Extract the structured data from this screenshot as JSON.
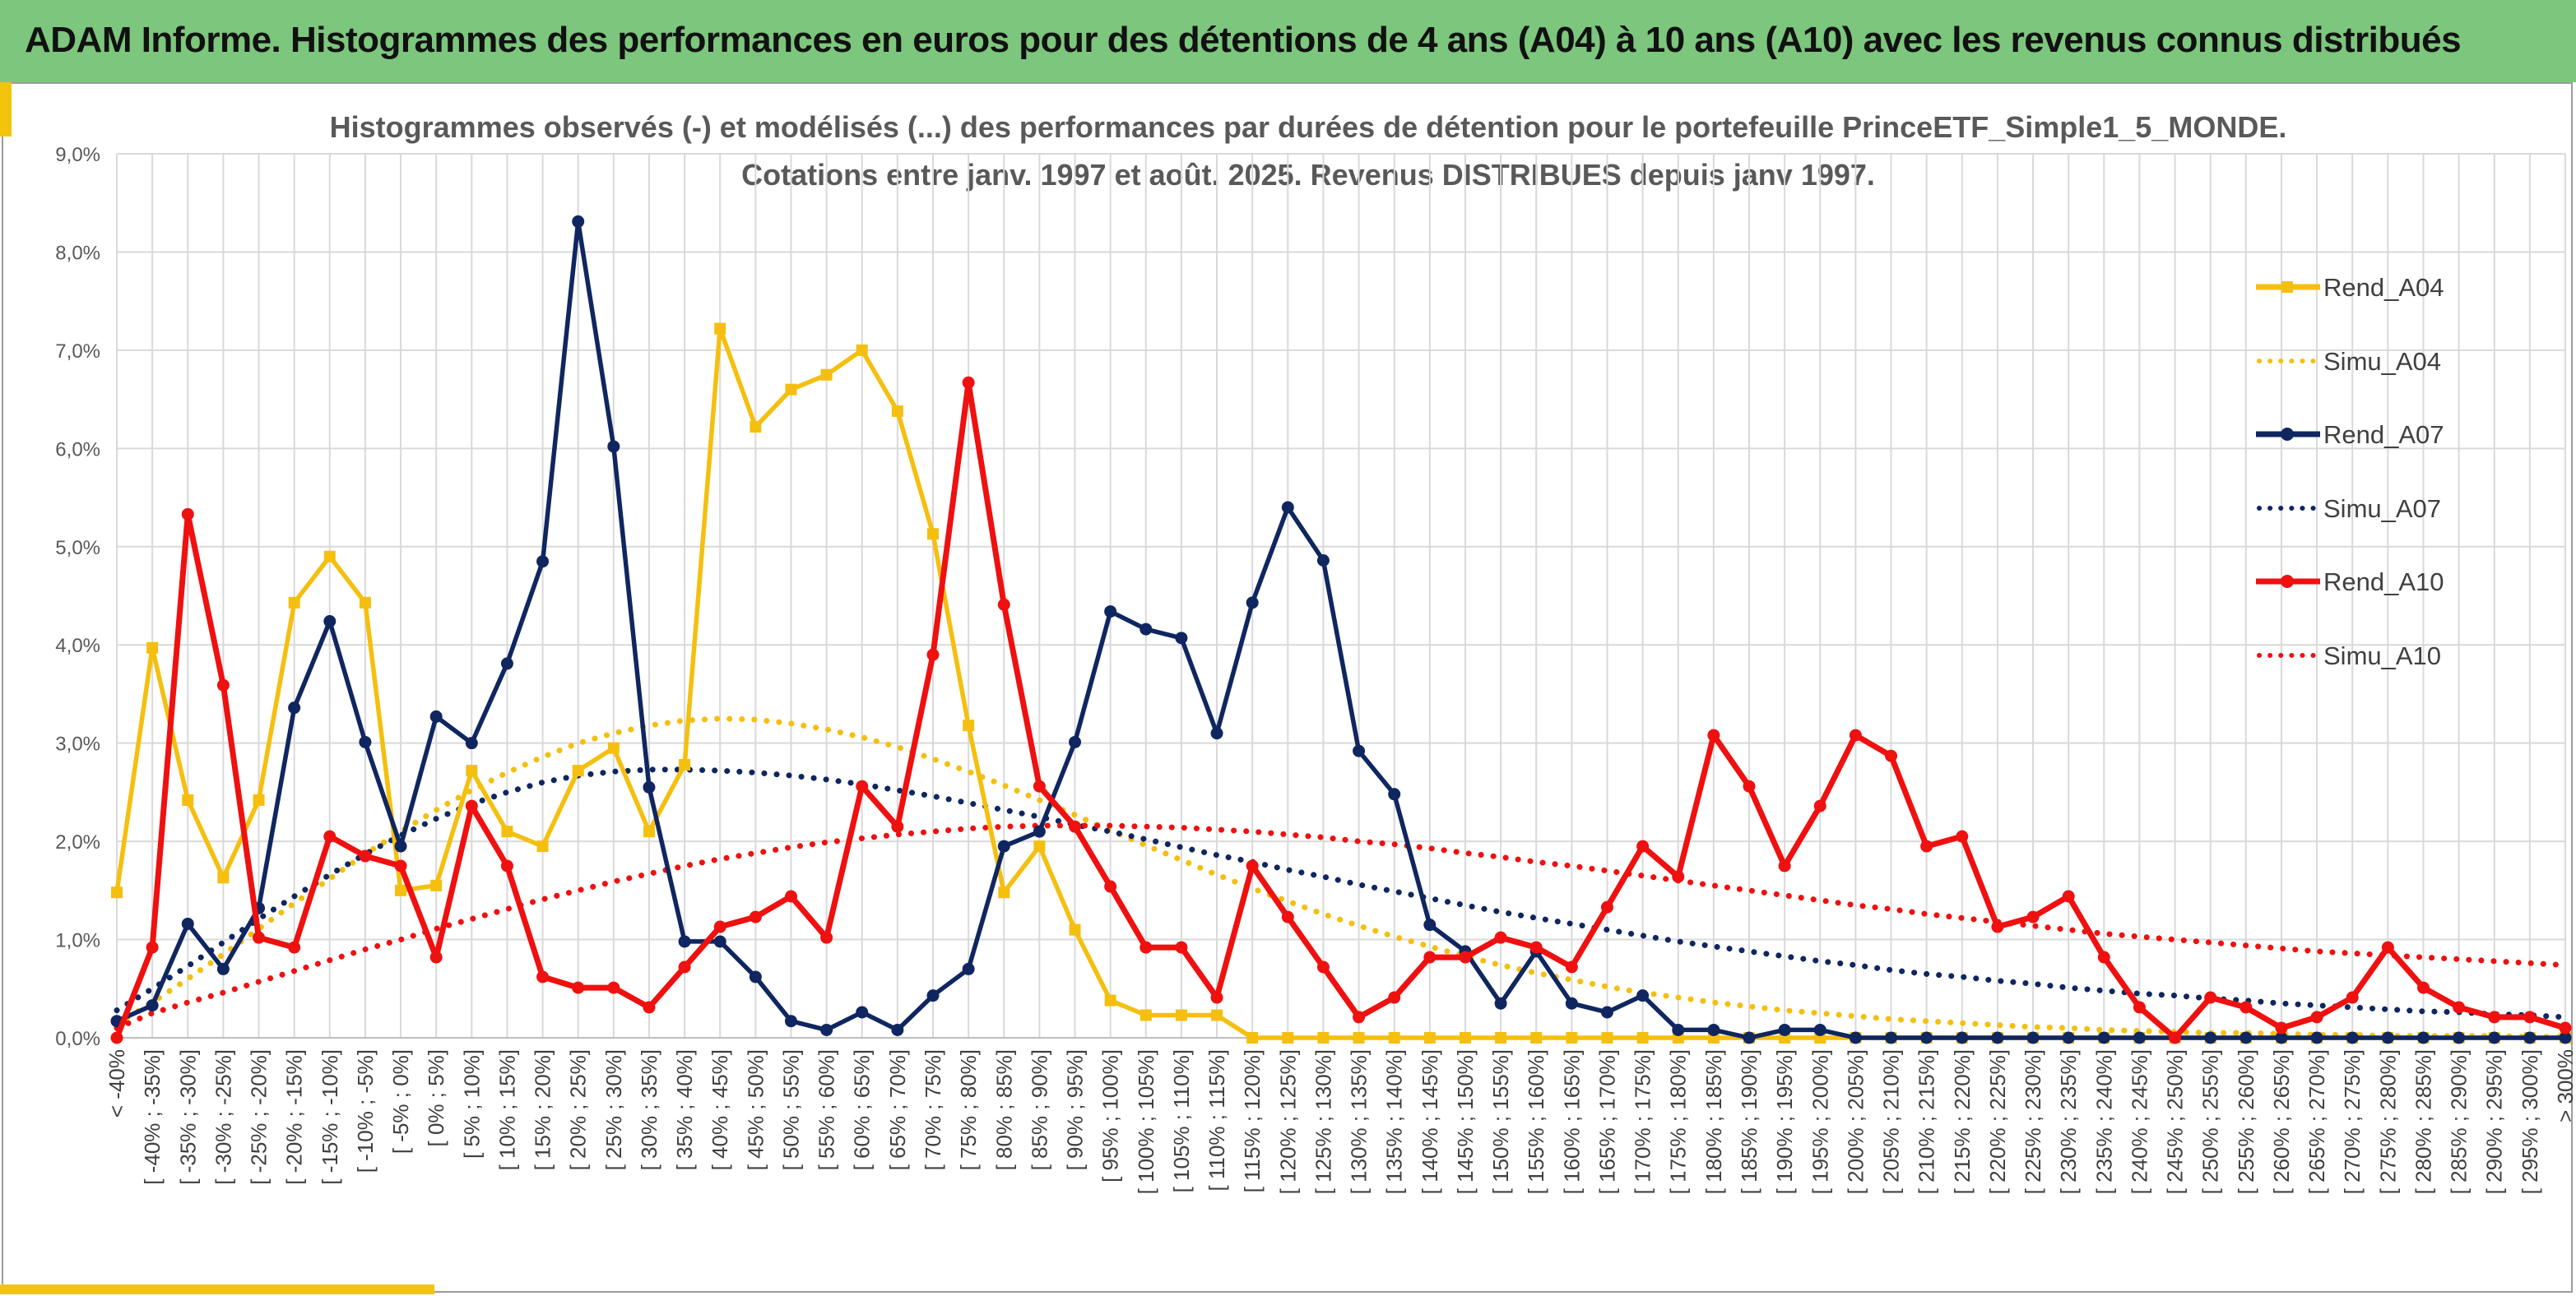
{
  "banner": {
    "title": "ADAM Informe. Histogrammes des performances en euros pour des détentions de 4 ans (A04) à 10 ans (A10) avec les revenus connus distribués"
  },
  "colors": {
    "banner": "#7dc67d",
    "accent": "#f2c40e",
    "A04": "#f5bf0f",
    "A07": "#0f2660",
    "A10": "#ef1010",
    "grid": "#d9d9d9"
  },
  "chart_data": {
    "type": "line",
    "title": "Histogrammes observés (-) et modélisés (...) des performances par durées de détention pour le portefeuille PrinceETF_Simple1_5_MONDE.",
    "subtitle": "Cotations entre janv. 1997 et août. 2025. Revenus DISTRIBUES depuis janv 1997.",
    "xlabel": "",
    "ylabel": "",
    "ylim": [
      0,
      9
    ],
    "y_ticks": [
      "0,0%",
      "1,0%",
      "2,0%",
      "3,0%",
      "4,0%",
      "5,0%",
      "6,0%",
      "7,0%",
      "8,0%",
      "9,0%"
    ],
    "grid": true,
    "legend_position": "right",
    "categories": [
      "< -40%",
      "[ -40% ; -35%]",
      "[ -35% ; -30%]",
      "[ -30% ; -25%]",
      "[ -25% ; -20%]",
      "[ -20% ; -15%]",
      "[ -15% ; -10%]",
      "[ -10% ; -5%]",
      "[ -5% ; 0%]",
      "[ 0% ; 5%]",
      "[ 5% ; 10%]",
      "[ 10% ; 15%]",
      "[ 15% ; 20%]",
      "[ 20% ; 25%]",
      "[ 25% ; 30%]",
      "[ 30% ; 35%]",
      "[ 35% ; 40%]",
      "[ 40% ; 45%]",
      "[ 45% ; 50%]",
      "[ 50% ; 55%]",
      "[ 55% ; 60%]",
      "[ 60% ; 65%]",
      "[ 65% ; 70%]",
      "[ 70% ; 75%]",
      "[ 75% ; 80%]",
      "[ 80% ; 85%]",
      "[ 85% ; 90%]",
      "[ 90% ; 95%]",
      "[ 95% ; 100%]",
      "[ 100% ; 105%]",
      "[ 105% ; 110%]",
      "[ 110% ; 115%]",
      "[ 115% ; 120%]",
      "[ 120% ; 125%]",
      "[ 125% ; 130%]",
      "[ 130% ; 135%]",
      "[ 135% ; 140%]",
      "[ 140% ; 145%]",
      "[ 145% ; 150%]",
      "[ 150% ; 155%]",
      "[ 155% ; 160%]",
      "[ 160% ; 165%]",
      "[ 165% ; 170%]",
      "[ 170% ; 175%]",
      "[ 175% ; 180%]",
      "[ 180% ; 185%]",
      "[ 185% ; 190%]",
      "[ 190% ; 195%]",
      "[ 195% ; 200%]",
      "[ 200% ; 205%]",
      "[ 205% ; 210%]",
      "[ 210% ; 215%]",
      "[ 215% ; 220%]",
      "[ 220% ; 225%]",
      "[ 225% ; 230%]",
      "[ 230% ; 235%]",
      "[ 235% ; 240%]",
      "[ 240% ; 245%]",
      "[ 245% ; 250%]",
      "[ 250% ; 255%]",
      "[ 255% ; 260%]",
      "[ 260% ; 265%]",
      "[ 265% ; 270%]",
      "[ 270% ; 275%]",
      "[ 275% ; 280%]",
      "[ 280% ; 285%]",
      "[ 285% ; 290%]",
      "[ 290% ; 295%]",
      "[ 295% ; 300%]",
      "> 300%"
    ],
    "series": [
      {
        "name": "Rend_A04",
        "style": "solid",
        "marker": "square",
        "color": "#f5bf0f",
        "values": [
          1.48,
          3.97,
          2.42,
          1.63,
          2.42,
          4.43,
          4.9,
          4.43,
          1.5,
          1.55,
          2.72,
          2.1,
          1.95,
          2.72,
          2.95,
          2.1,
          2.78,
          7.22,
          6.22,
          6.6,
          6.75,
          7.0,
          6.38,
          5.13,
          3.18,
          1.48,
          1.95,
          1.1,
          0.38,
          0.23,
          0.23,
          0.23,
          0.0,
          0.0,
          0.0,
          0.0,
          0.0,
          0.0,
          0.0,
          0.0,
          0.0,
          0.0,
          0.0,
          0.0,
          0.0,
          0.0,
          0.0,
          0.0,
          0.0,
          0.0,
          0.0,
          0.0,
          0.0,
          0.0,
          0.0,
          0.0,
          0.0,
          0.0,
          0.0,
          0.0,
          0.0,
          0.0,
          0.0,
          0.0,
          0.0,
          0.0,
          0.0,
          0.0,
          0.0,
          0.0
        ]
      },
      {
        "name": "Simu_A04",
        "style": "dotted",
        "color": "#f5bf0f",
        "values": [
          0.14,
          0.36,
          0.6,
          0.85,
          1.11,
          1.37,
          1.62,
          1.87,
          2.1,
          2.32,
          2.52,
          2.7,
          2.86,
          3.0,
          3.1,
          3.18,
          3.23,
          3.25,
          3.24,
          3.2,
          3.14,
          3.06,
          2.96,
          2.84,
          2.71,
          2.57,
          2.42,
          2.27,
          2.11,
          1.96,
          1.81,
          1.66,
          1.52,
          1.39,
          1.26,
          1.14,
          1.03,
          0.93,
          0.83,
          0.74,
          0.66,
          0.59,
          0.52,
          0.46,
          0.41,
          0.36,
          0.32,
          0.28,
          0.25,
          0.22,
          0.19,
          0.17,
          0.15,
          0.13,
          0.11,
          0.1,
          0.08,
          0.07,
          0.06,
          0.05,
          0.05,
          0.04,
          0.03,
          0.03,
          0.02,
          0.02,
          0.02,
          0.02,
          0.01,
          0.01
        ]
      },
      {
        "name": "Rend_A07",
        "style": "solid",
        "marker": "circle",
        "color": "#0f2660",
        "values": [
          0.17,
          0.33,
          1.16,
          0.7,
          1.32,
          3.36,
          4.24,
          3.01,
          1.95,
          3.27,
          3.0,
          3.81,
          4.85,
          8.31,
          6.02,
          2.55,
          0.98,
          0.98,
          0.62,
          0.17,
          0.08,
          0.26,
          0.08,
          0.43,
          0.7,
          1.95,
          2.1,
          3.01,
          4.34,
          4.16,
          4.07,
          3.1,
          4.43,
          5.4,
          4.86,
          2.92,
          2.48,
          1.15,
          0.88,
          0.35,
          0.88,
          0.35,
          0.26,
          0.43,
          0.08,
          0.08,
          0.0,
          0.08,
          0.08,
          0.0,
          0.0,
          0.0,
          0.0,
          0.0,
          0.0,
          0.0,
          0.0,
          0.0,
          0.0,
          0.0,
          0.0,
          0.0,
          0.0,
          0.0,
          0.0,
          0.0,
          0.0,
          0.0,
          0.0,
          0.0
        ]
      },
      {
        "name": "Simu_A07",
        "style": "dotted",
        "color": "#0f2660",
        "values": [
          0.28,
          0.5,
          0.73,
          0.97,
          1.21,
          1.44,
          1.66,
          1.87,
          2.06,
          2.23,
          2.38,
          2.5,
          2.6,
          2.67,
          2.71,
          2.73,
          2.73,
          2.72,
          2.7,
          2.67,
          2.63,
          2.58,
          2.52,
          2.46,
          2.39,
          2.32,
          2.25,
          2.17,
          2.1,
          2.02,
          1.94,
          1.86,
          1.79,
          1.71,
          1.64,
          1.56,
          1.49,
          1.42,
          1.35,
          1.28,
          1.22,
          1.16,
          1.1,
          1.04,
          0.98,
          0.93,
          0.88,
          0.83,
          0.78,
          0.74,
          0.69,
          0.65,
          0.62,
          0.58,
          0.55,
          0.51,
          0.48,
          0.45,
          0.43,
          0.4,
          0.38,
          0.35,
          0.33,
          0.31,
          0.29,
          0.27,
          0.26,
          0.24,
          0.23,
          0.21
        ]
      },
      {
        "name": "Rend_A10",
        "style": "solid",
        "marker": "circle",
        "color": "#ef1010",
        "values": [
          0.0,
          0.92,
          5.33,
          3.59,
          1.02,
          0.92,
          2.05,
          1.85,
          1.75,
          0.82,
          2.36,
          1.75,
          0.62,
          0.51,
          0.51,
          0.31,
          0.72,
          1.13,
          1.23,
          1.44,
          1.02,
          2.56,
          2.15,
          3.9,
          6.67,
          4.41,
          2.56,
          2.15,
          1.54,
          0.92,
          0.92,
          0.41,
          1.75,
          1.23,
          0.72,
          0.21,
          0.41,
          0.82,
          0.82,
          1.02,
          0.92,
          0.72,
          1.33,
          1.95,
          1.64,
          3.08,
          2.56,
          1.75,
          2.36,
          3.08,
          2.87,
          1.95,
          2.05,
          1.13,
          1.23,
          1.44,
          0.82,
          0.31,
          0.0,
          0.41,
          0.31,
          0.1,
          0.21,
          0.41,
          0.92,
          0.51,
          0.31,
          0.21,
          0.21,
          0.1
        ]
      },
      {
        "name": "Simu_A10",
        "style": "dotted",
        "color": "#ef1010",
        "values": [
          0.1,
          0.25,
          0.36,
          0.46,
          0.57,
          0.68,
          0.79,
          0.9,
          1.0,
          1.11,
          1.21,
          1.31,
          1.41,
          1.5,
          1.59,
          1.67,
          1.75,
          1.82,
          1.88,
          1.94,
          1.99,
          2.03,
          2.07,
          2.1,
          2.13,
          2.15,
          2.16,
          2.16,
          2.16,
          2.15,
          2.14,
          2.12,
          2.1,
          2.07,
          2.04,
          2.0,
          1.97,
          1.93,
          1.88,
          1.84,
          1.79,
          1.75,
          1.7,
          1.65,
          1.6,
          1.55,
          1.5,
          1.45,
          1.4,
          1.35,
          1.31,
          1.26,
          1.22,
          1.18,
          1.14,
          1.1,
          1.06,
          1.03,
          1.0,
          0.97,
          0.94,
          0.91,
          0.88,
          0.86,
          0.84,
          0.82,
          0.8,
          0.78,
          0.76,
          0.74
        ]
      }
    ]
  }
}
